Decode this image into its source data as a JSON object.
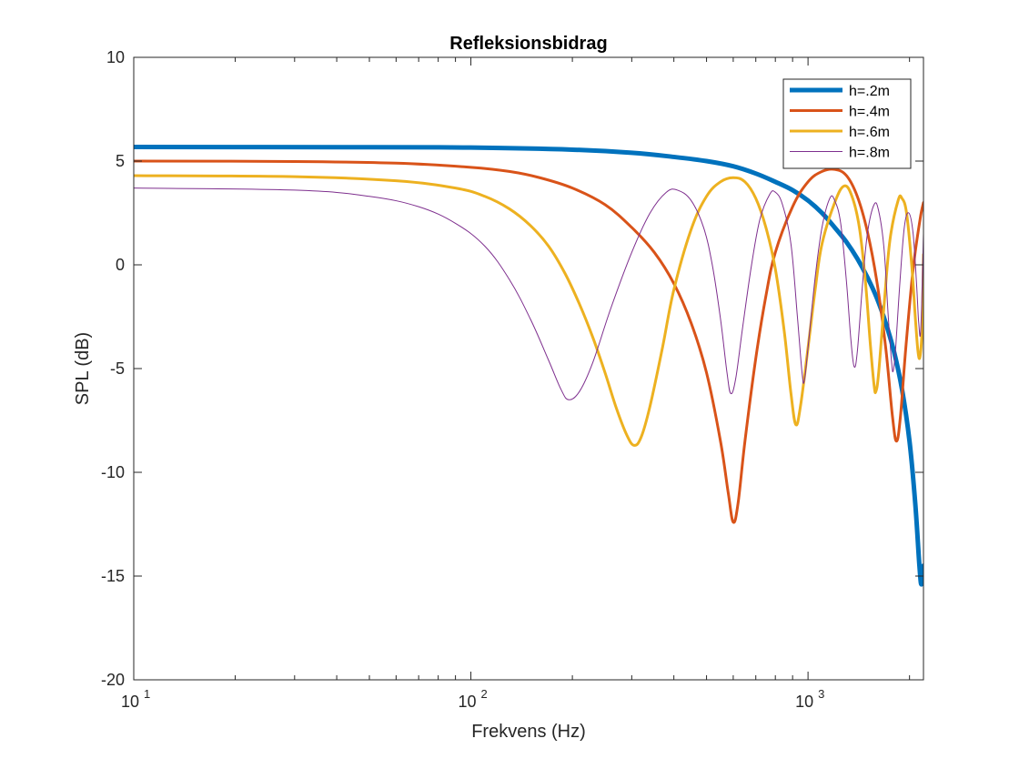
{
  "chart_data": {
    "type": "line",
    "title": "Refleksionsbidrag",
    "xlabel": "Frekvens (Hz)",
    "ylabel": "SPL (dB)",
    "xscale": "log",
    "xlim": [
      10,
      2200
    ],
    "ylim": [
      -20,
      10
    ],
    "yticks": [
      10,
      5,
      0,
      -5,
      -10,
      -15,
      -20
    ],
    "ytick_labels": [
      "10",
      "5",
      "0",
      "-5",
      "-10",
      "-15",
      "-20"
    ],
    "xticks_major": [
      10,
      100,
      1000
    ],
    "xtick_labels": [
      {
        "base": "10",
        "exp": "1"
      },
      {
        "base": "10",
        "exp": "2"
      },
      {
        "base": "10",
        "exp": "3"
      }
    ],
    "grid": false,
    "legend_position": "top-right",
    "series": [
      {
        "name": "h=.2m",
        "color": "#0072BD",
        "width": "thick",
        "points": [
          [
            10,
            5.68
          ],
          [
            50,
            5.67
          ],
          [
            100,
            5.65
          ],
          [
            200,
            5.55
          ],
          [
            300,
            5.4
          ],
          [
            400,
            5.2
          ],
          [
            500,
            5.0
          ],
          [
            600,
            4.75
          ],
          [
            700,
            4.4
          ],
          [
            800,
            4.0
          ],
          [
            900,
            3.6
          ],
          [
            1000,
            3.1
          ],
          [
            1100,
            2.5
          ],
          [
            1200,
            1.8
          ],
          [
            1300,
            1.1
          ],
          [
            1400,
            0.3
          ],
          [
            1500,
            -0.6
          ],
          [
            1600,
            -1.6
          ],
          [
            1700,
            -2.8
          ],
          [
            1800,
            -4.2
          ],
          [
            1900,
            -6.0
          ],
          [
            2000,
            -8.5
          ],
          [
            2080,
            -11.5
          ],
          [
            2140,
            -14.5
          ],
          [
            2170,
            -15.4
          ],
          [
            2200,
            -14.5
          ]
        ]
      },
      {
        "name": "h=.4m",
        "color": "#D95319",
        "width": "medium",
        "points": [
          [
            10,
            5.0
          ],
          [
            30,
            4.98
          ],
          [
            60,
            4.9
          ],
          [
            100,
            4.7
          ],
          [
            130,
            4.5
          ],
          [
            160,
            4.2
          ],
          [
            200,
            3.7
          ],
          [
            250,
            2.9
          ],
          [
            300,
            1.8
          ],
          [
            350,
            0.6
          ],
          [
            400,
            -0.9
          ],
          [
            450,
            -2.8
          ],
          [
            500,
            -5.2
          ],
          [
            550,
            -8.5
          ],
          [
            580,
            -11.0
          ],
          [
            600,
            -12.4
          ],
          [
            620,
            -11.5
          ],
          [
            650,
            -8.5
          ],
          [
            700,
            -4.5
          ],
          [
            750,
            -1.5
          ],
          [
            800,
            0.6
          ],
          [
            900,
            2.8
          ],
          [
            1000,
            4.0
          ],
          [
            1100,
            4.5
          ],
          [
            1200,
            4.6
          ],
          [
            1300,
            4.3
          ],
          [
            1400,
            3.3
          ],
          [
            1500,
            1.6
          ],
          [
            1600,
            -0.8
          ],
          [
            1700,
            -4.0
          ],
          [
            1780,
            -7.3
          ],
          [
            1830,
            -8.5
          ],
          [
            1880,
            -7.3
          ],
          [
            1950,
            -4.0
          ],
          [
            2050,
            -0.2
          ],
          [
            2150,
            2.2
          ],
          [
            2200,
            3.0
          ]
        ]
      },
      {
        "name": "h=.6m",
        "color": "#EDB120",
        "width": "medium",
        "points": [
          [
            10,
            4.3
          ],
          [
            30,
            4.25
          ],
          [
            60,
            4.05
          ],
          [
            90,
            3.7
          ],
          [
            110,
            3.3
          ],
          [
            130,
            2.7
          ],
          [
            150,
            1.9
          ],
          [
            170,
            0.9
          ],
          [
            190,
            -0.4
          ],
          [
            210,
            -1.9
          ],
          [
            230,
            -3.5
          ],
          [
            250,
            -5.2
          ],
          [
            270,
            -6.9
          ],
          [
            290,
            -8.2
          ],
          [
            305,
            -8.7
          ],
          [
            320,
            -8.3
          ],
          [
            340,
            -6.8
          ],
          [
            370,
            -4.0
          ],
          [
            400,
            -1.2
          ],
          [
            450,
            1.7
          ],
          [
            500,
            3.3
          ],
          [
            550,
            4.0
          ],
          [
            600,
            4.2
          ],
          [
            650,
            4.0
          ],
          [
            700,
            3.2
          ],
          [
            750,
            1.8
          ],
          [
            800,
            -0.2
          ],
          [
            850,
            -3.2
          ],
          [
            890,
            -6.2
          ],
          [
            920,
            -7.7
          ],
          [
            950,
            -6.8
          ],
          [
            1000,
            -4.0
          ],
          [
            1050,
            -1.2
          ],
          [
            1100,
            1.0
          ],
          [
            1200,
            3.0
          ],
          [
            1280,
            3.8
          ],
          [
            1350,
            3.3
          ],
          [
            1420,
            1.8
          ],
          [
            1480,
            -0.8
          ],
          [
            1530,
            -3.8
          ],
          [
            1570,
            -5.8
          ],
          [
            1590,
            -6.1
          ],
          [
            1620,
            -5.2
          ],
          [
            1680,
            -2.0
          ],
          [
            1750,
            1.2
          ],
          [
            1850,
            3.1
          ],
          [
            1900,
            3.2
          ],
          [
            1960,
            2.5
          ],
          [
            2030,
            0.0
          ],
          [
            2080,
            -2.5
          ],
          [
            2120,
            -4.2
          ],
          [
            2150,
            -4.4
          ],
          [
            2180,
            -3.0
          ],
          [
            2200,
            0.5
          ]
        ]
      },
      {
        "name": "h=.8m",
        "color": "#7E2F8E",
        "width": "thin",
        "points": [
          [
            10,
            3.7
          ],
          [
            30,
            3.6
          ],
          [
            50,
            3.3
          ],
          [
            70,
            2.8
          ],
          [
            90,
            2.0
          ],
          [
            110,
            0.9
          ],
          [
            130,
            -0.7
          ],
          [
            150,
            -2.6
          ],
          [
            170,
            -4.6
          ],
          [
            185,
            -6.0
          ],
          [
            195,
            -6.5
          ],
          [
            210,
            -6.1
          ],
          [
            230,
            -4.7
          ],
          [
            260,
            -2.1
          ],
          [
            300,
            0.6
          ],
          [
            340,
            2.5
          ],
          [
            380,
            3.5
          ],
          [
            410,
            3.6
          ],
          [
            450,
            3.1
          ],
          [
            490,
            1.8
          ],
          [
            520,
            0.0
          ],
          [
            550,
            -2.6
          ],
          [
            575,
            -5.2
          ],
          [
            590,
            -6.2
          ],
          [
            610,
            -5.5
          ],
          [
            640,
            -3.0
          ],
          [
            680,
            0.0
          ],
          [
            720,
            2.2
          ],
          [
            770,
            3.4
          ],
          [
            800,
            3.5
          ],
          [
            840,
            2.9
          ],
          [
            890,
            1.0
          ],
          [
            930,
            -2.5
          ],
          [
            960,
            -5.2
          ],
          [
            975,
            -5.6
          ],
          [
            1000,
            -4.0
          ],
          [
            1050,
            -0.6
          ],
          [
            1100,
            1.8
          ],
          [
            1160,
            3.2
          ],
          [
            1200,
            3.1
          ],
          [
            1250,
            2.0
          ],
          [
            1300,
            -0.8
          ],
          [
            1340,
            -3.6
          ],
          [
            1370,
            -4.9
          ],
          [
            1400,
            -4.2
          ],
          [
            1450,
            -1.0
          ],
          [
            1500,
            1.5
          ],
          [
            1570,
            2.9
          ],
          [
            1620,
            2.6
          ],
          [
            1680,
            0.8
          ],
          [
            1730,
            -2.5
          ],
          [
            1770,
            -4.7
          ],
          [
            1790,
            -5.1
          ],
          [
            1820,
            -4.0
          ],
          [
            1870,
            -1.0
          ],
          [
            1930,
            1.8
          ],
          [
            1990,
            2.5
          ],
          [
            2050,
            1.5
          ],
          [
            2100,
            -1.0
          ],
          [
            2130,
            -2.8
          ],
          [
            2160,
            -3.1
          ],
          [
            2200,
            1.5
          ]
        ]
      }
    ]
  }
}
